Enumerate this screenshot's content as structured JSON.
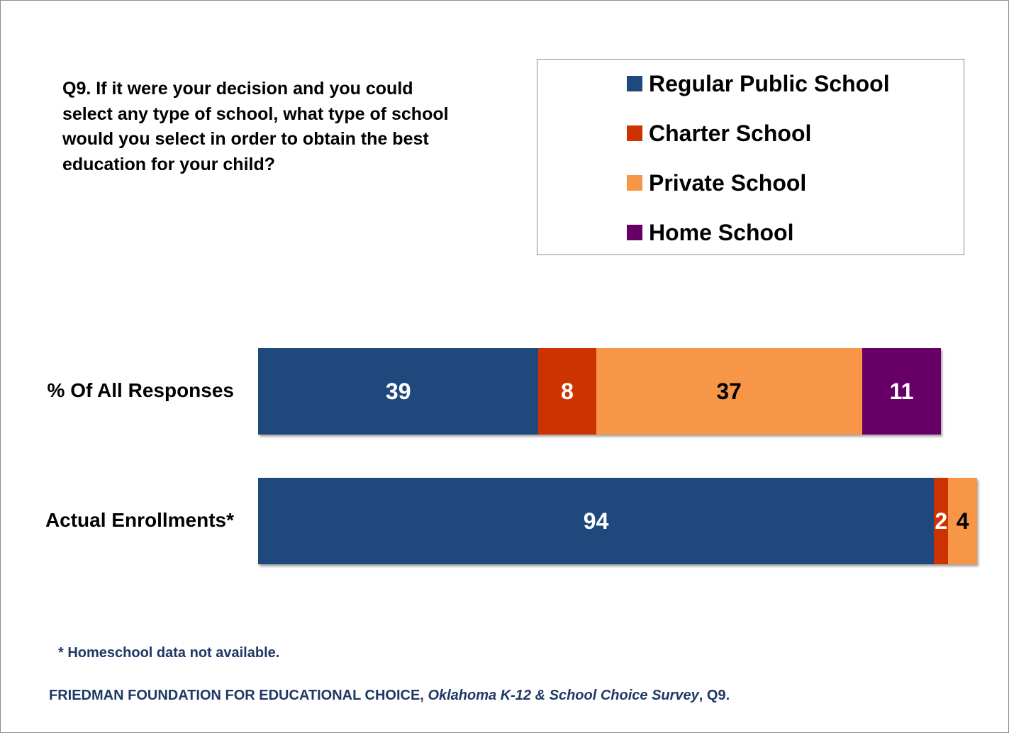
{
  "question": "Q9.  If it were your decision and you could select any type of school, what type of school would you select in order to obtain the best education for your child?",
  "chart_data": {
    "type": "bar",
    "orientation": "horizontal",
    "stacked": true,
    "categories": [
      "% Of All Responses",
      "Actual Enrollments*"
    ],
    "series": [
      {
        "name": "Regular Public School",
        "color": "#1f497d",
        "values": [
          39,
          94
        ]
      },
      {
        "name": "Charter School",
        "color": "#cc3300",
        "values": [
          8,
          2
        ]
      },
      {
        "name": "Private School",
        "color": "#f79646",
        "values": [
          37,
          4
        ]
      },
      {
        "name": "Home School",
        "color": "#660066",
        "values": [
          11,
          null
        ]
      }
    ],
    "data_labels": [
      [
        "39",
        "94"
      ],
      [
        "8",
        "2"
      ],
      [
        "37",
        "4"
      ],
      [
        "11",
        ""
      ]
    ],
    "label_colors": [
      "#ffffff",
      "#ffffff",
      "#000000",
      "#ffffff"
    ],
    "xlim": [
      0,
      100
    ],
    "legend_position": "top-right",
    "grid": false
  },
  "footnote": "* Homeschool data not available.",
  "source": {
    "org": "FRIEDMAN FOUNDATION FOR EDUCATIONAL CHOICE, ",
    "title": "Oklahoma K-12 & School Choice Survey",
    "suffix": ", Q9."
  }
}
